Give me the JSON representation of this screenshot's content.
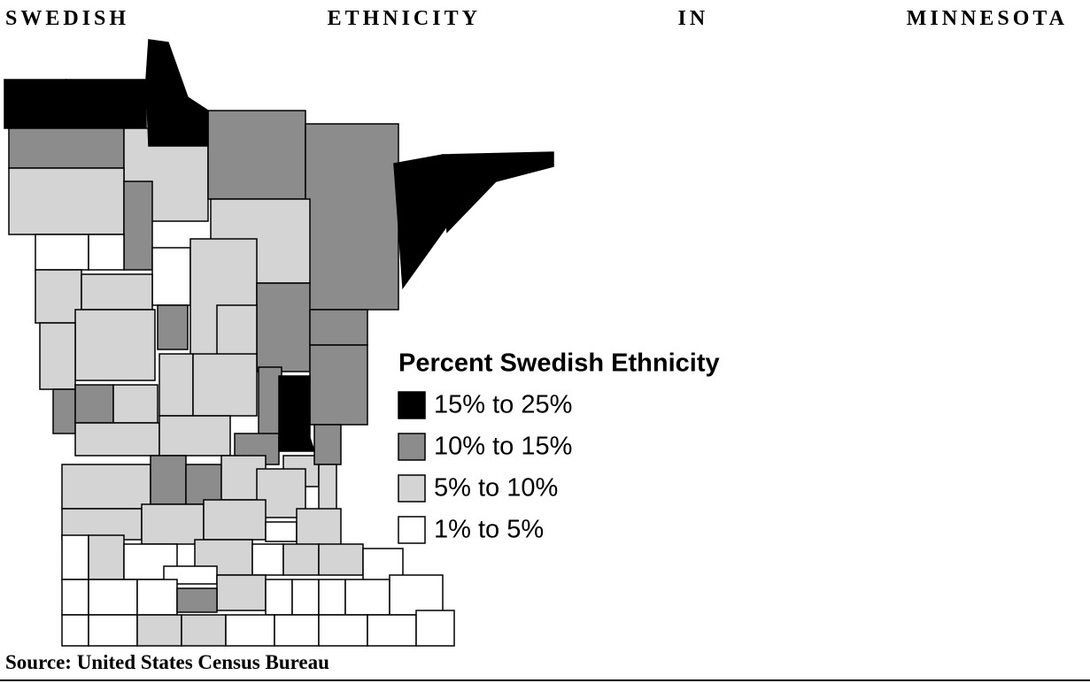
{
  "title": "SWEDISH ETHNICITY IN MINNESOTA",
  "legend": {
    "title": "Percent Swedish Ethnicity",
    "items": [
      {
        "label": "15% to 25%",
        "color": "#000000"
      },
      {
        "label": "10% to 15%",
        "color": "#8c8c8c"
      },
      {
        "label": "5% to 10%",
        "color": "#d4d4d4"
      },
      {
        "label": "1% to 5%",
        "color": "#ffffff"
      }
    ]
  },
  "source": "Source: United States Census Bureau"
}
